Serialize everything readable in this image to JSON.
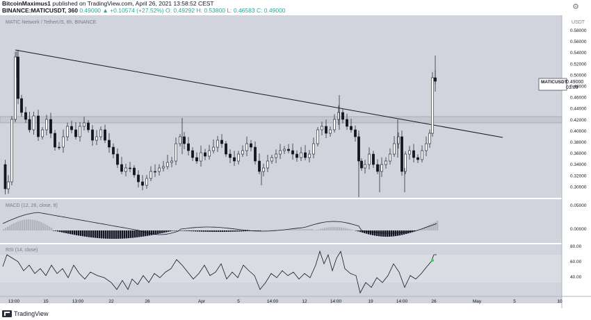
{
  "header": {
    "author": "BitcoinMaximus1",
    "published_text": "published on TradingView.com, April 26, 2021 13:58:52 CEST",
    "symbol_line": "BINANCE:MATICUSDT, 360",
    "price_line": "0.49000 ▲ +0.10574 (+27.52%) O: 0.49292 H: 0.53800 L: 0.46583 C: 0.49000"
  },
  "chart": {
    "legend": "MATIC Network / TetherUS, 6h, BINANCE",
    "currency": "USDT",
    "price_ticks": [
      "0.58000",
      "0.56000",
      "0.54000",
      "0.52000",
      "0.50000",
      "0.48000",
      "0.46000",
      "0.44000",
      "0.42000",
      "0.40000",
      "0.38000",
      "0.36000",
      "0.34000",
      "0.32000",
      "0.30000"
    ],
    "price_tag": {
      "symbol": "MATICUSDT",
      "price": "0.49000",
      "countdown": "01:09"
    },
    "macd_legend": "MACD (12, 26, close, 9)",
    "macd_ticks": [
      "0.05000",
      "0.00000"
    ],
    "rsi_legend": "RSI (14, close)",
    "rsi_ticks": [
      "80.00",
      "60.00",
      "40.00"
    ],
    "time_labels": [
      "13:00",
      "15",
      "13:00",
      "22",
      "26",
      "Apr",
      "5",
      "14:00",
      "12",
      "14:00",
      "19",
      "14:00",
      "26",
      "May",
      "5",
      "10"
    ]
  },
  "colors": {
    "up": "#ffffff",
    "down": "#131722",
    "plot_bg": "#d1d4dc",
    "rsi_band": "#dadce3",
    "last_rsi": "#3ed058"
  },
  "footer": {
    "brand": "TradingView"
  },
  "icons": {
    "settings": "gear-icon",
    "logo": "tradingview-logo-icon"
  }
}
